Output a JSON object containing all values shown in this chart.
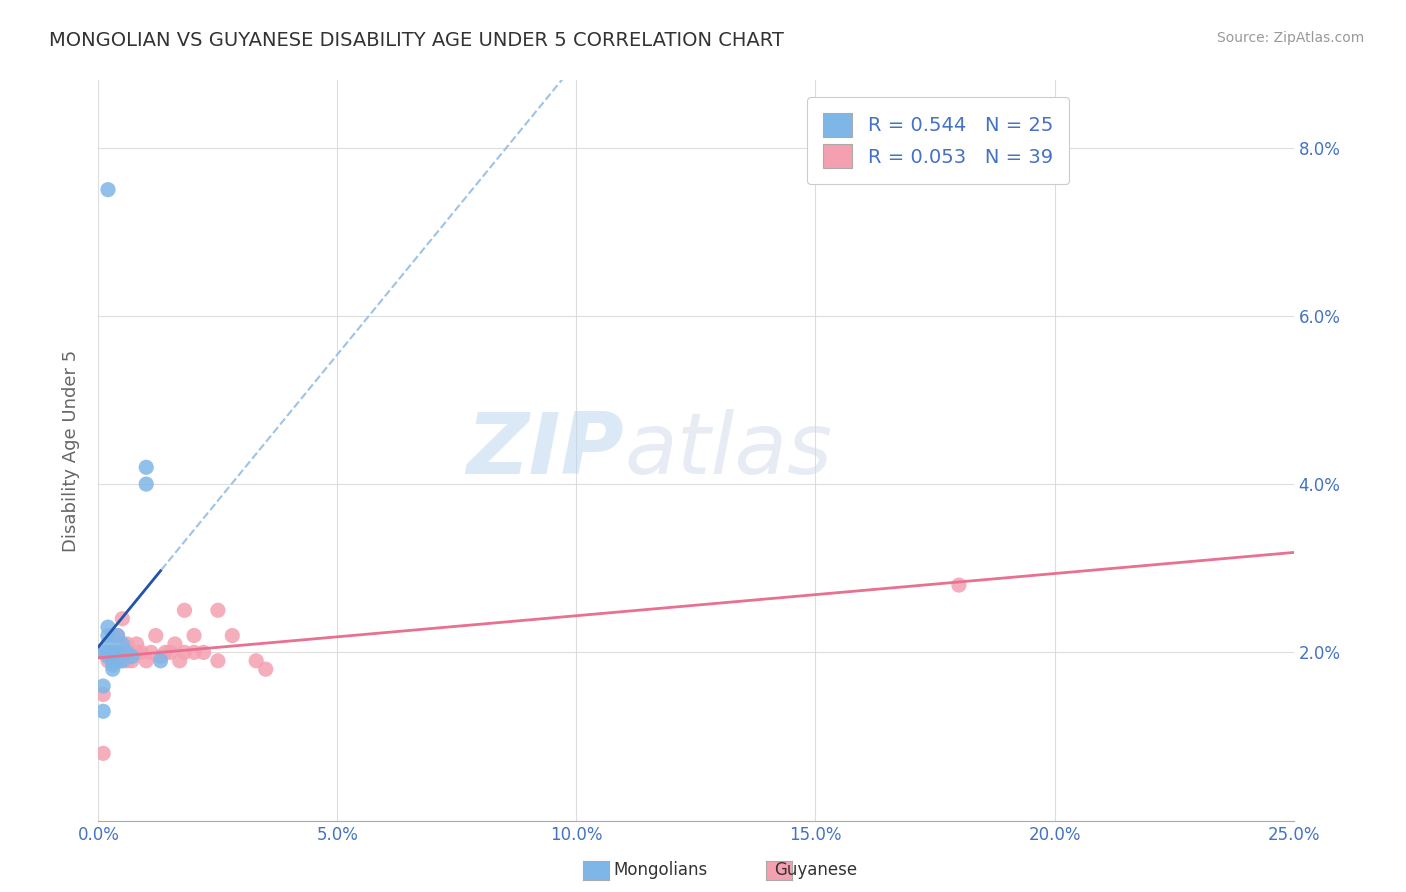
{
  "title": "MONGOLIAN VS GUYANESE DISABILITY AGE UNDER 5 CORRELATION CHART",
  "source": "Source: ZipAtlas.com",
  "ylabel": "Disability Age Under 5",
  "xlim": [
    0.0,
    0.25
  ],
  "ylim": [
    0.0,
    0.088
  ],
  "xticks": [
    0.0,
    0.05,
    0.1,
    0.15,
    0.2,
    0.25
  ],
  "yticks": [
    0.0,
    0.02,
    0.04,
    0.06,
    0.08
  ],
  "xticklabels": [
    "0.0%",
    "5.0%",
    "10.0%",
    "15.0%",
    "20.0%",
    "25.0%"
  ],
  "yticklabels_right": [
    "",
    "2.0%",
    "4.0%",
    "6.0%",
    "8.0%"
  ],
  "mongolian_color": "#7EB6E8",
  "mongolian_edge_color": "#5A9FD4",
  "guyanese_color": "#F4A0B0",
  "guyanese_edge_color": "#E07090",
  "mongolian_line_color": "#2255AA",
  "mongolian_dash_color": "#9DC3E6",
  "guyanese_line_color": "#E87090",
  "mongolian_R": 0.544,
  "mongolian_N": 25,
  "guyanese_R": 0.053,
  "guyanese_N": 39,
  "mongolian_x": [
    0.001,
    0.001,
    0.001,
    0.002,
    0.002,
    0.002,
    0.002,
    0.002,
    0.002,
    0.002,
    0.003,
    0.003,
    0.003,
    0.003,
    0.003,
    0.004,
    0.004,
    0.004,
    0.005,
    0.005,
    0.006,
    0.007,
    0.01,
    0.01,
    0.013
  ],
  "mongolian_y": [
    0.013,
    0.016,
    0.02,
    0.0195,
    0.02,
    0.02,
    0.021,
    0.022,
    0.023,
    0.075,
    0.018,
    0.0185,
    0.019,
    0.0195,
    0.02,
    0.019,
    0.02,
    0.022,
    0.019,
    0.021,
    0.02,
    0.0195,
    0.04,
    0.042,
    0.019
  ],
  "guyanese_x": [
    0.001,
    0.001,
    0.002,
    0.002,
    0.003,
    0.003,
    0.003,
    0.004,
    0.004,
    0.004,
    0.005,
    0.005,
    0.005,
    0.006,
    0.006,
    0.007,
    0.008,
    0.008,
    0.009,
    0.01,
    0.011,
    0.012,
    0.013,
    0.014,
    0.015,
    0.016,
    0.017,
    0.018,
    0.018,
    0.02,
    0.02,
    0.022,
    0.025,
    0.025,
    0.028,
    0.033,
    0.035,
    0.18,
    0.001
  ],
  "guyanese_y": [
    0.015,
    0.02,
    0.019,
    0.02,
    0.019,
    0.02,
    0.022,
    0.019,
    0.02,
    0.022,
    0.019,
    0.02,
    0.024,
    0.019,
    0.021,
    0.019,
    0.02,
    0.021,
    0.02,
    0.019,
    0.02,
    0.022,
    0.0195,
    0.02,
    0.02,
    0.021,
    0.019,
    0.02,
    0.025,
    0.02,
    0.022,
    0.02,
    0.025,
    0.019,
    0.022,
    0.019,
    0.018,
    0.028,
    0.008
  ],
  "watermark_zip": "ZIP",
  "watermark_atlas": "atlas",
  "background_color": "#FFFFFF",
  "grid_color": "#DDDDDD",
  "title_color": "#333333",
  "axis_label_color": "#666666",
  "tick_label_color": "#4472C4",
  "source_color": "#999999"
}
